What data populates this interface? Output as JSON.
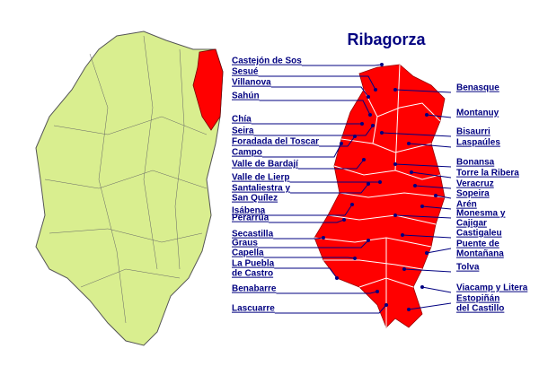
{
  "title": "Ribagorza",
  "labels_left": [
    [
      "Castejón de Sos"
    ],
    [
      "Sesué"
    ],
    [
      "Villanova"
    ],
    [
      "Sahún"
    ],
    [
      "Chía"
    ],
    [
      "Seira"
    ],
    [
      "Foradada del Toscar"
    ],
    [
      "Campo"
    ],
    [
      "Valle de Bardají"
    ],
    [
      "Valle de Lierp"
    ],
    [
      "Santaliestra y",
      "San Quílez"
    ],
    [
      "Isábena"
    ],
    [
      "Perarrúa"
    ],
    [
      "Secastilla"
    ],
    [
      "Graus"
    ],
    [
      "Capella"
    ],
    [
      "La Puebla",
      "de Castro"
    ],
    [
      "Benabarre"
    ],
    [
      "Lascuarre"
    ]
  ],
  "labels_right": [
    [
      "Benasque"
    ],
    [
      "Montanuy"
    ],
    [
      "Bisaurri"
    ],
    [
      "Laspaúles"
    ],
    [
      "Bonansa"
    ],
    [
      "Torre la Ribera"
    ],
    [
      "Veracruz"
    ],
    [
      "Sopeira"
    ],
    [
      "Arén"
    ],
    [
      "Monesma y",
      "Cajigar"
    ],
    [
      "Castigaleu"
    ],
    [
      "Puente de",
      "Montañana"
    ],
    [
      "Tolva"
    ],
    [
      "Viacamp y Litera"
    ],
    [
      "Estopiñán",
      "del Castillo"
    ]
  ]
}
